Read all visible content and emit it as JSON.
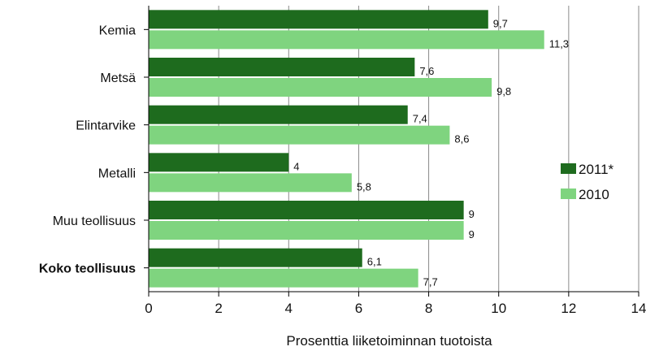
{
  "chart_data": {
    "type": "bar",
    "orientation": "horizontal",
    "categories": [
      "Kemia",
      "Metsä",
      "Elintarvike",
      "Metalli",
      "Muu teollisuus",
      "Koko teollisuus"
    ],
    "bold_categories": [
      "Koko teollisuus"
    ],
    "series": [
      {
        "name": "2011*",
        "color": "#1e6b1e",
        "values": [
          9.7,
          7.6,
          7.4,
          4,
          9,
          6.1
        ],
        "labels": [
          "9,7",
          "7,6",
          "7,4",
          "4",
          "9",
          "6,1"
        ]
      },
      {
        "name": "2010",
        "color": "#7fd47f",
        "values": [
          11.3,
          9.8,
          8.6,
          5.8,
          9,
          7.7
        ],
        "labels": [
          "11,3",
          "9,8",
          "8,6",
          "5,8",
          "9",
          "7,7"
        ]
      }
    ],
    "xlim": [
      0,
      14
    ],
    "xticks": [
      0,
      2,
      4,
      6,
      8,
      10,
      12,
      14
    ],
    "xtick_labels": [
      "0",
      "2",
      "4",
      "6",
      "8",
      "10",
      "12",
      "14"
    ],
    "xlabel": "Prosenttia liiketoiminnan tuotoista",
    "title": "",
    "grid": "vertical",
    "legend_position": "right"
  }
}
